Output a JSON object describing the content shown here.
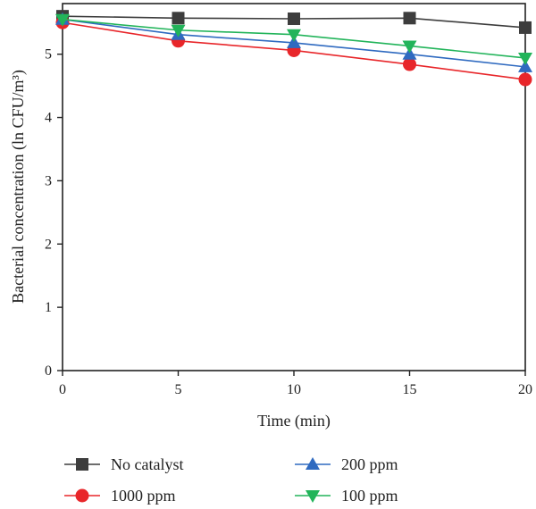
{
  "chart_data": {
    "type": "line",
    "xlabel": "Time (min)",
    "ylabel": "Bacterial concentration (ln CFU/m³)",
    "xlim": [
      0,
      20
    ],
    "ylim": [
      0,
      5.8
    ],
    "x_ticks": [
      0,
      5,
      10,
      15,
      20
    ],
    "y_ticks": [
      0,
      1,
      2,
      3,
      4,
      5
    ],
    "grid": false,
    "legend_position": "bottom",
    "x": [
      0,
      5,
      10,
      15,
      20
    ],
    "series": [
      {
        "name": "No catalyst",
        "values": [
          5.6,
          5.57,
          5.56,
          5.57,
          5.42
        ],
        "color": "#3d3d3d",
        "marker": "square"
      },
      {
        "name": "1000 ppm",
        "values": [
          5.5,
          5.21,
          5.06,
          4.84,
          4.6
        ],
        "color": "#e8262a",
        "marker": "circle"
      },
      {
        "name": "200 ppm",
        "values": [
          5.55,
          5.31,
          5.18,
          5.0,
          4.8
        ],
        "color": "#2f6ac0",
        "marker": "triangle-up"
      },
      {
        "name": "100 ppm",
        "values": [
          5.55,
          5.38,
          5.31,
          5.13,
          4.94
        ],
        "color": "#22b45a",
        "marker": "triangle-down"
      }
    ]
  }
}
